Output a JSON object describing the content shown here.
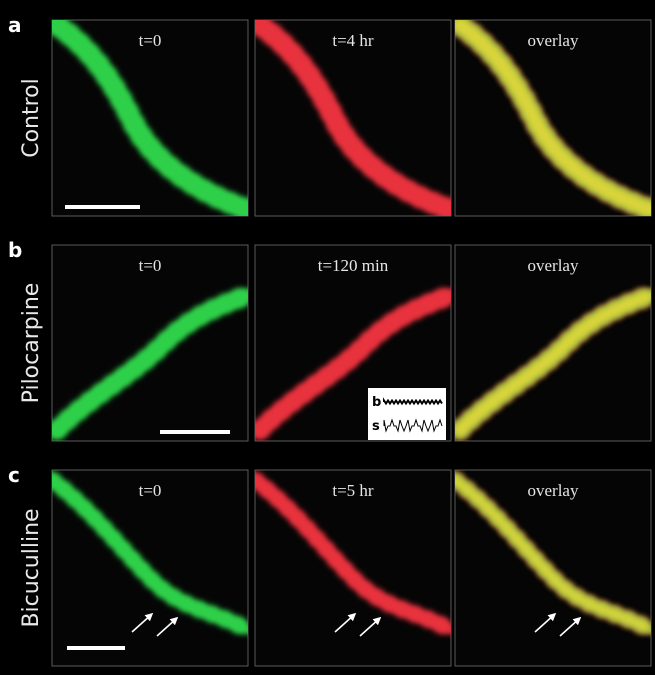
{
  "rows": [
    {
      "letter": "a",
      "label": "Control",
      "panels": [
        "t=0",
        "t=4 hr",
        "overlay"
      ]
    },
    {
      "letter": "b",
      "label": "Pilocarpine",
      "panels": [
        "t=0",
        "t=120 min",
        "overlay"
      ]
    },
    {
      "letter": "c",
      "label": "Bicuculline",
      "panels": [
        "t=0",
        "t=5 hr",
        "overlay"
      ]
    }
  ],
  "inset": {
    "labels": [
      "b",
      "s"
    ]
  }
}
